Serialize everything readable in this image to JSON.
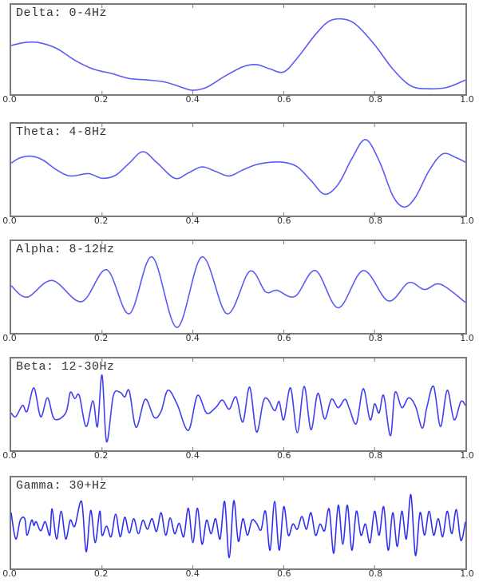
{
  "chart_data": [
    {
      "type": "line",
      "title": "Delta: 0-4Hz",
      "xlabel": "",
      "ylabel": "",
      "xlim": [
        0.0,
        1.0
      ],
      "xticks": [
        "0.0",
        "0.2",
        "0.4",
        "0.6",
        "0.8",
        "1.0"
      ],
      "grid": false,
      "series": [
        {
          "name": "Delta",
          "color": "#5b5bf5",
          "x": [
            0.0,
            0.03,
            0.06,
            0.1,
            0.14,
            0.18,
            0.22,
            0.26,
            0.3,
            0.34,
            0.38,
            0.4,
            0.43,
            0.47,
            0.51,
            0.54,
            0.57,
            0.6,
            0.63,
            0.67,
            0.7,
            0.73,
            0.76,
            0.8,
            0.84,
            0.88,
            0.92,
            0.96,
            1.0
          ],
          "y": [
            0.62,
            0.66,
            0.66,
            0.58,
            0.42,
            0.3,
            0.24,
            0.17,
            0.15,
            0.12,
            0.04,
            0.01,
            0.05,
            0.2,
            0.33,
            0.36,
            0.3,
            0.26,
            0.45,
            0.77,
            0.95,
            0.98,
            0.9,
            0.63,
            0.3,
            0.07,
            0.03,
            0.05,
            0.15
          ]
        }
      ]
    },
    {
      "type": "line",
      "title": "Theta: 4-8Hz",
      "xlim": [
        0.0,
        1.0
      ],
      "xticks": [
        "0.0",
        "0.2",
        "0.4",
        "0.6",
        "0.8",
        "1.0"
      ],
      "grid": false,
      "series": [
        {
          "name": "Theta",
          "color": "#5b5bf5",
          "x": [
            0.0,
            0.02,
            0.045,
            0.07,
            0.1,
            0.13,
            0.17,
            0.2,
            0.23,
            0.26,
            0.29,
            0.32,
            0.36,
            0.39,
            0.42,
            0.45,
            0.48,
            0.51,
            0.54,
            0.57,
            0.6,
            0.63,
            0.66,
            0.69,
            0.72,
            0.75,
            0.78,
            0.81,
            0.84,
            0.865,
            0.89,
            0.92,
            0.95,
            0.98,
            1.0
          ],
          "y": [
            0.65,
            0.72,
            0.74,
            0.69,
            0.56,
            0.48,
            0.51,
            0.45,
            0.49,
            0.65,
            0.8,
            0.66,
            0.45,
            0.52,
            0.6,
            0.54,
            0.48,
            0.56,
            0.63,
            0.66,
            0.66,
            0.6,
            0.42,
            0.24,
            0.37,
            0.71,
            0.96,
            0.68,
            0.22,
            0.07,
            0.2,
            0.55,
            0.77,
            0.72,
            0.66
          ]
        }
      ]
    },
    {
      "type": "line",
      "title": "Alpha: 8-12Hz",
      "xlim": [
        0.0,
        1.0
      ],
      "xticks": [
        "0.0",
        "0.2",
        "0.4",
        "0.6",
        "0.8",
        "1.0"
      ],
      "grid": false,
      "series": [
        {
          "name": "Alpha",
          "color": "#5b5bf5",
          "x": [
            0.0,
            0.035,
            0.09,
            0.155,
            0.21,
            0.26,
            0.31,
            0.365,
            0.42,
            0.475,
            0.525,
            0.56,
            0.585,
            0.625,
            0.67,
            0.72,
            0.775,
            0.83,
            0.875,
            0.91,
            0.945,
            1.0
          ],
          "y": [
            0.58,
            0.43,
            0.65,
            0.37,
            0.79,
            0.21,
            0.96,
            0.03,
            0.96,
            0.21,
            0.77,
            0.5,
            0.52,
            0.44,
            0.78,
            0.29,
            0.78,
            0.38,
            0.62,
            0.53,
            0.6,
            0.36
          ]
        }
      ]
    },
    {
      "type": "line",
      "title": "Beta: 12-30Hz",
      "xlim": [
        0.0,
        1.0
      ],
      "xticks": [
        "0.0",
        "0.2",
        "0.4",
        "0.6",
        "0.8",
        "1.0"
      ],
      "grid": false,
      "series": [
        {
          "name": "Beta",
          "color": "#4040f0",
          "x": [
            0.0,
            0.01,
            0.025,
            0.035,
            0.05,
            0.065,
            0.08,
            0.095,
            0.12,
            0.13,
            0.14,
            0.15,
            0.165,
            0.18,
            0.19,
            0.2,
            0.21,
            0.225,
            0.24,
            0.25,
            0.26,
            0.275,
            0.295,
            0.315,
            0.33,
            0.345,
            0.365,
            0.39,
            0.41,
            0.43,
            0.45,
            0.465,
            0.48,
            0.495,
            0.51,
            0.525,
            0.54,
            0.555,
            0.565,
            0.58,
            0.59,
            0.6,
            0.615,
            0.63,
            0.645,
            0.66,
            0.675,
            0.69,
            0.705,
            0.72,
            0.735,
            0.745,
            0.76,
            0.775,
            0.79,
            0.8,
            0.81,
            0.82,
            0.835,
            0.845,
            0.86,
            0.875,
            0.89,
            0.905,
            0.915,
            0.93,
            0.945,
            0.96,
            0.975,
            0.99,
            1.0
          ],
          "y": [
            0.45,
            0.4,
            0.55,
            0.47,
            0.78,
            0.4,
            0.65,
            0.37,
            0.45,
            0.72,
            0.64,
            0.68,
            0.27,
            0.61,
            0.27,
            0.95,
            0.07,
            0.68,
            0.72,
            0.66,
            0.74,
            0.26,
            0.63,
            0.39,
            0.47,
            0.75,
            0.57,
            0.22,
            0.68,
            0.45,
            0.52,
            0.62,
            0.5,
            0.66,
            0.33,
            0.79,
            0.2,
            0.6,
            0.63,
            0.48,
            0.6,
            0.36,
            0.78,
            0.19,
            0.8,
            0.23,
            0.71,
            0.37,
            0.63,
            0.52,
            0.63,
            0.5,
            0.31,
            0.77,
            0.36,
            0.57,
            0.45,
            0.68,
            0.15,
            0.72,
            0.52,
            0.65,
            0.54,
            0.25,
            0.52,
            0.8,
            0.27,
            0.75,
            0.36,
            0.6,
            0.55
          ]
        }
      ]
    },
    {
      "type": "line",
      "title": "Gamma: 30+Hz",
      "xlim": [
        0.0,
        1.0
      ],
      "xticks": [
        "0.0",
        "0.2",
        "0.4",
        "0.6",
        "0.8",
        "1.0"
      ],
      "grid": false,
      "series": [
        {
          "name": "Gamma",
          "color": "#3030f0",
          "x": [
            0.0,
            0.01,
            0.02,
            0.03,
            0.035,
            0.045,
            0.05,
            0.055,
            0.065,
            0.075,
            0.085,
            0.09,
            0.1,
            0.11,
            0.12,
            0.13,
            0.14,
            0.155,
            0.165,
            0.175,
            0.185,
            0.195,
            0.2,
            0.21,
            0.22,
            0.23,
            0.24,
            0.25,
            0.26,
            0.27,
            0.28,
            0.29,
            0.3,
            0.31,
            0.32,
            0.33,
            0.34,
            0.35,
            0.36,
            0.37,
            0.38,
            0.39,
            0.4,
            0.41,
            0.42,
            0.43,
            0.44,
            0.45,
            0.46,
            0.47,
            0.48,
            0.49,
            0.5,
            0.51,
            0.52,
            0.53,
            0.54,
            0.55,
            0.56,
            0.57,
            0.58,
            0.59,
            0.6,
            0.61,
            0.62,
            0.63,
            0.64,
            0.65,
            0.66,
            0.67,
            0.68,
            0.69,
            0.7,
            0.71,
            0.72,
            0.73,
            0.74,
            0.75,
            0.76,
            0.77,
            0.78,
            0.79,
            0.8,
            0.81,
            0.82,
            0.83,
            0.84,
            0.85,
            0.86,
            0.87,
            0.88,
            0.89,
            0.9,
            0.91,
            0.92,
            0.93,
            0.94,
            0.95,
            0.96,
            0.97,
            0.98,
            0.99,
            1.0
          ],
          "y": [
            0.7,
            0.35,
            0.6,
            0.62,
            0.4,
            0.6,
            0.53,
            0.58,
            0.46,
            0.58,
            0.4,
            0.75,
            0.35,
            0.72,
            0.35,
            0.6,
            0.52,
            0.85,
            0.18,
            0.73,
            0.3,
            0.72,
            0.4,
            0.52,
            0.38,
            0.68,
            0.38,
            0.64,
            0.43,
            0.62,
            0.42,
            0.6,
            0.48,
            0.62,
            0.45,
            0.7,
            0.4,
            0.63,
            0.42,
            0.56,
            0.38,
            0.76,
            0.3,
            0.76,
            0.28,
            0.6,
            0.42,
            0.62,
            0.35,
            0.85,
            0.1,
            0.86,
            0.32,
            0.62,
            0.4,
            0.6,
            0.56,
            0.47,
            0.72,
            0.2,
            0.85,
            0.2,
            0.78,
            0.4,
            0.55,
            0.48,
            0.65,
            0.48,
            0.7,
            0.4,
            0.55,
            0.46,
            0.75,
            0.16,
            0.8,
            0.28,
            0.8,
            0.2,
            0.72,
            0.4,
            0.55,
            0.3,
            0.72,
            0.4,
            0.78,
            0.2,
            0.7,
            0.25,
            0.72,
            0.35,
            0.94,
            0.13,
            0.7,
            0.4,
            0.72,
            0.4,
            0.62,
            0.38,
            0.72,
            0.42,
            0.74,
            0.33,
            0.58
          ]
        }
      ]
    }
  ],
  "panels": [
    {
      "title": "Delta: 0-4Hz"
    },
    {
      "title": "Theta: 4-8Hz"
    },
    {
      "title": "Alpha: 8-12Hz"
    },
    {
      "title": "Beta: 12-30Hz"
    },
    {
      "title": "Gamma: 30+Hz"
    }
  ],
  "xticks": [
    "0.0",
    "0.2",
    "0.4",
    "0.6",
    "0.8",
    "1.0"
  ],
  "colors": {
    "axis": "#7a7a7a",
    "line": "#5b5bf5",
    "text": "#333333"
  }
}
